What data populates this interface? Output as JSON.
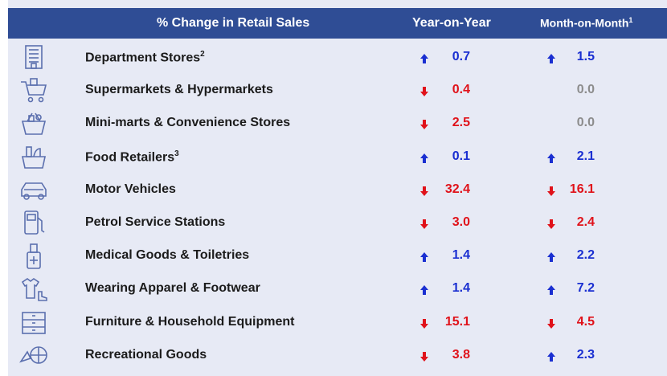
{
  "header": {
    "title": "% Change in Retail Sales",
    "yoy": "Year-on-Year",
    "mom": "Month-on-Month",
    "mom_note": "1"
  },
  "colors": {
    "header_bg": "#2f4d95",
    "panel_bg": "#e7eaf5",
    "up": "#1a2fd1",
    "down": "#e0121a",
    "flat": "#8c8c8c",
    "icon": "#5b6fae"
  },
  "chart_data": {
    "type": "table",
    "columns": [
      "% Change in Retail Sales",
      "Year-on-Year",
      "Month-on-Month"
    ],
    "rows": [
      {
        "category": "Department Stores",
        "note": "2",
        "icon": "department-store-icon",
        "yoy": "0.7",
        "yoy_dir": "up",
        "mom": "1.5",
        "mom_dir": "up"
      },
      {
        "category": "Supermarkets & Hypermarkets",
        "note": "",
        "icon": "shopping-cart-icon",
        "yoy": "0.4",
        "yoy_dir": "down",
        "mom": "0.0",
        "mom_dir": "flat"
      },
      {
        "category": "Mini-marts & Convenience Stores",
        "note": "",
        "icon": "grocery-basket-icon",
        "yoy": "2.5",
        "yoy_dir": "down",
        "mom": "0.0",
        "mom_dir": "flat"
      },
      {
        "category": "Food Retailers",
        "note": "3",
        "icon": "food-basket-icon",
        "yoy": "0.1",
        "yoy_dir": "up",
        "mom": "2.1",
        "mom_dir": "up"
      },
      {
        "category": "Motor Vehicles",
        "note": "",
        "icon": "car-icon",
        "yoy": "32.4",
        "yoy_dir": "down",
        "mom": "16.1",
        "mom_dir": "down"
      },
      {
        "category": "Petrol Service Stations",
        "note": "",
        "icon": "fuel-pump-icon",
        "yoy": "3.0",
        "yoy_dir": "down",
        "mom": "2.4",
        "mom_dir": "down"
      },
      {
        "category": "Medical Goods & Toiletries",
        "note": "",
        "icon": "medicine-bottle-icon",
        "yoy": "1.4",
        "yoy_dir": "up",
        "mom": "2.2",
        "mom_dir": "up"
      },
      {
        "category": "Wearing Apparel & Footwear",
        "note": "",
        "icon": "apparel-icon",
        "yoy": "1.4",
        "yoy_dir": "up",
        "mom": "7.2",
        "mom_dir": "up"
      },
      {
        "category": "Furniture & Household Equipment",
        "note": "",
        "icon": "cabinet-icon",
        "yoy": "15.1",
        "yoy_dir": "down",
        "mom": "4.5",
        "mom_dir": "down"
      },
      {
        "category": "Recreational Goods",
        "note": "",
        "icon": "sports-ball-icon",
        "yoy": "3.8",
        "yoy_dir": "down",
        "mom": "2.3",
        "mom_dir": "up"
      }
    ]
  }
}
